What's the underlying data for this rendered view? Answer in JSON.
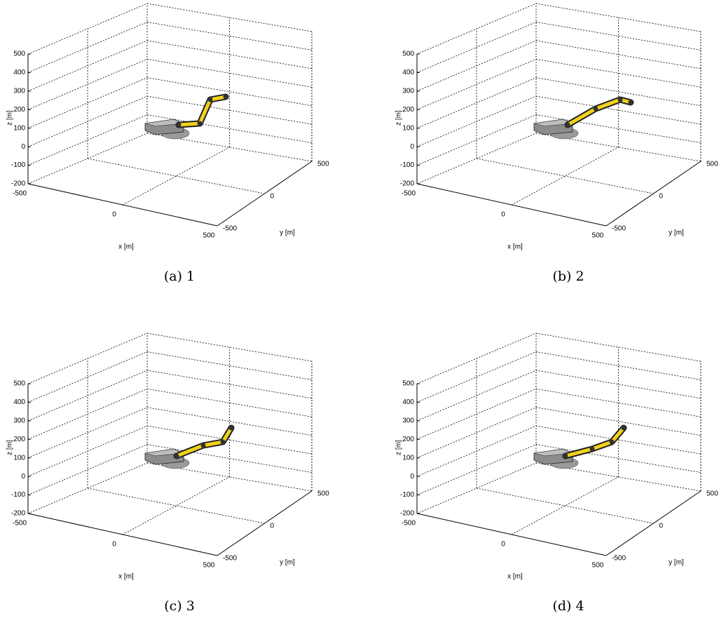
{
  "panels": [
    {
      "caption": "(a) 1",
      "z_label": "z [m]",
      "x_label": "x [m]",
      "y_label": "y [m]",
      "z_ticks": [
        500,
        400,
        300,
        200,
        100,
        0,
        -100,
        -200
      ],
      "x_ticks": [
        -500,
        0,
        500
      ],
      "y_ticks": [
        -500,
        0,
        500
      ]
    },
    {
      "caption": "(b) 2",
      "z_label": "z [m]",
      "x_label": "x [m]",
      "y_label": "y [m]",
      "z_ticks": [
        500,
        400,
        300,
        200,
        100,
        0,
        -100,
        -200
      ],
      "x_ticks": [
        -500,
        0,
        500
      ],
      "y_ticks": [
        -500,
        0,
        500
      ]
    },
    {
      "caption": "(c) 3",
      "z_label": "z [m]",
      "x_label": "x [m]",
      "y_label": "y [m]",
      "z_ticks": [
        500,
        400,
        300,
        200,
        100,
        0,
        -100,
        -200
      ],
      "x_ticks": [
        -500,
        0,
        500
      ],
      "y_ticks": [
        -500,
        0,
        500
      ]
    },
    {
      "caption": "(d) 4",
      "z_label": "z [m]",
      "x_label": "x [m]",
      "y_label": "y [m]",
      "z_ticks": [
        500,
        400,
        300,
        200,
        100,
        0,
        -100,
        -200
      ],
      "x_ticks": [
        -500,
        0,
        500
      ],
      "y_ticks": [
        -500,
        0,
        500
      ]
    }
  ]
}
